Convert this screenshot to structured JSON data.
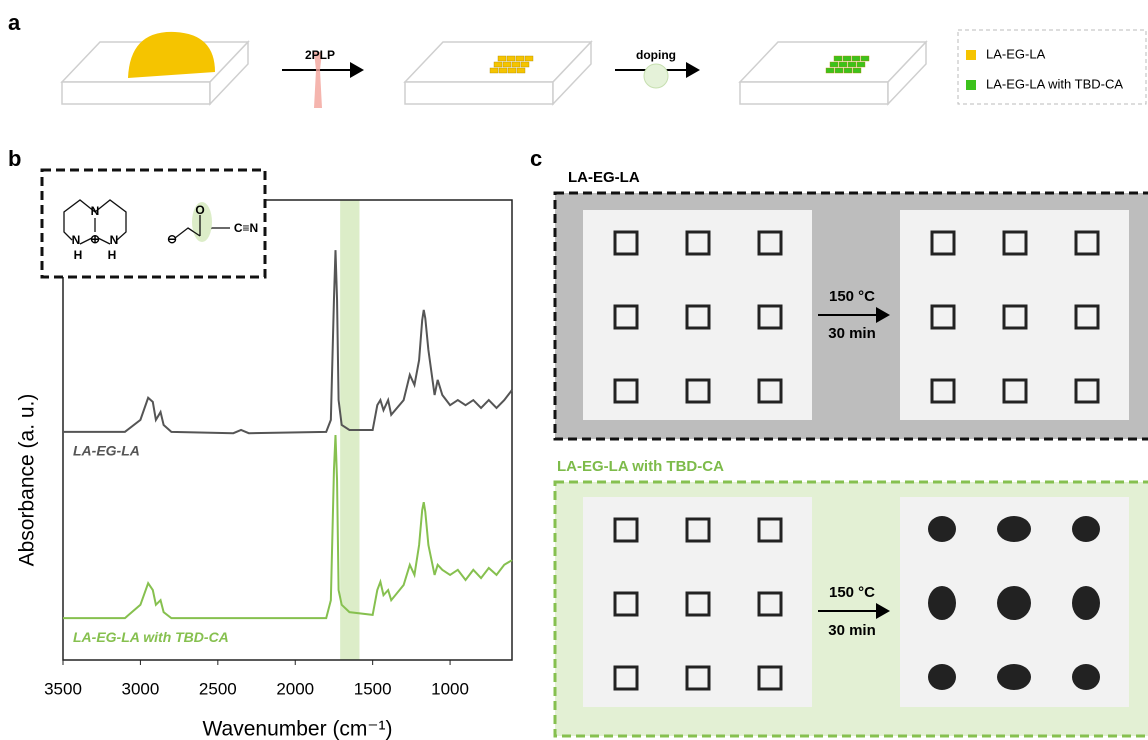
{
  "panel_labels": [
    "a",
    "b",
    "c"
  ],
  "schematic": {
    "steps": [
      "2PLP",
      "doping"
    ],
    "legend": [
      {
        "name": "LA-EG-LA",
        "color": "#f5c400"
      },
      {
        "name": "LA-EG-LA with TBD-CA",
        "color": "#3cc21c"
      }
    ]
  },
  "structure": {
    "atoms": [
      "N",
      "N",
      "N",
      "H",
      "H",
      "⊕",
      "⊖",
      "O",
      "C≡N"
    ]
  },
  "chart_data": {
    "type": "line",
    "xlabel": "Wavenumber (cm⁻¹)",
    "ylabel": "Absorbance (a. u.)",
    "x": [
      3500,
      3100,
      3000,
      2950,
      2920,
      2900,
      2870,
      2850,
      2800,
      2400,
      2350,
      2300,
      1800,
      1770,
      1750,
      1740,
      1730,
      1720,
      1700,
      1650,
      1500,
      1470,
      1450,
      1430,
      1400,
      1380,
      1300,
      1260,
      1230,
      1200,
      1180,
      1170,
      1160,
      1140,
      1100,
      1080,
      1050,
      1000,
      950,
      900,
      850,
      800,
      750,
      700,
      650,
      600
    ],
    "xlim": [
      3500,
      600
    ],
    "xticks": [
      3500,
      3000,
      2500,
      2000,
      1500,
      1000
    ],
    "ylim": [
      0,
      100
    ],
    "highlight": [
      1710,
      1585
    ],
    "highlight_color": "#dcedc8",
    "series": [
      {
        "name": "LA-EG-LA",
        "color": "#555555",
        "values": [
          49.6,
          49.6,
          52.2,
          57.0,
          56.1,
          52.2,
          53.9,
          51.1,
          49.6,
          49.3,
          50.0,
          49.3,
          49.6,
          52.2,
          78.3,
          89.1,
          78.3,
          56.5,
          51.1,
          50.0,
          50.0,
          55.4,
          56.5,
          54.3,
          56.5,
          53.3,
          56.5,
          62.0,
          59.8,
          65.2,
          73.9,
          76.1,
          74.3,
          67.4,
          57.6,
          60.9,
          57.6,
          55.4,
          56.5,
          55.4,
          56.5,
          54.8,
          56.5,
          54.8,
          56.5,
          58.7
        ]
      },
      {
        "name": "LA-EG-LA with TBD-CA",
        "color": "#86c04f",
        "values": [
          9.1,
          9.1,
          12.0,
          16.7,
          15.2,
          12.0,
          13.0,
          10.4,
          9.1,
          9.1,
          9.1,
          9.1,
          9.1,
          13.0,
          41.3,
          48.9,
          39.1,
          15.2,
          12.0,
          10.4,
          9.8,
          15.2,
          17.0,
          14.1,
          15.2,
          13.0,
          16.3,
          20.7,
          18.5,
          25.0,
          32.6,
          34.3,
          32.2,
          25.0,
          18.5,
          20.7,
          19.6,
          18.5,
          19.6,
          17.4,
          19.6,
          17.8,
          20.0,
          18.5,
          20.7,
          21.7
        ]
      }
    ]
  },
  "micrographs": [
    {
      "title": "LA-EG-LA",
      "condition": [
        "150 °C",
        "30 min"
      ]
    },
    {
      "title": "LA-EG-LA with TBD-CA",
      "condition": [
        "150 °C",
        "30 min"
      ]
    }
  ]
}
